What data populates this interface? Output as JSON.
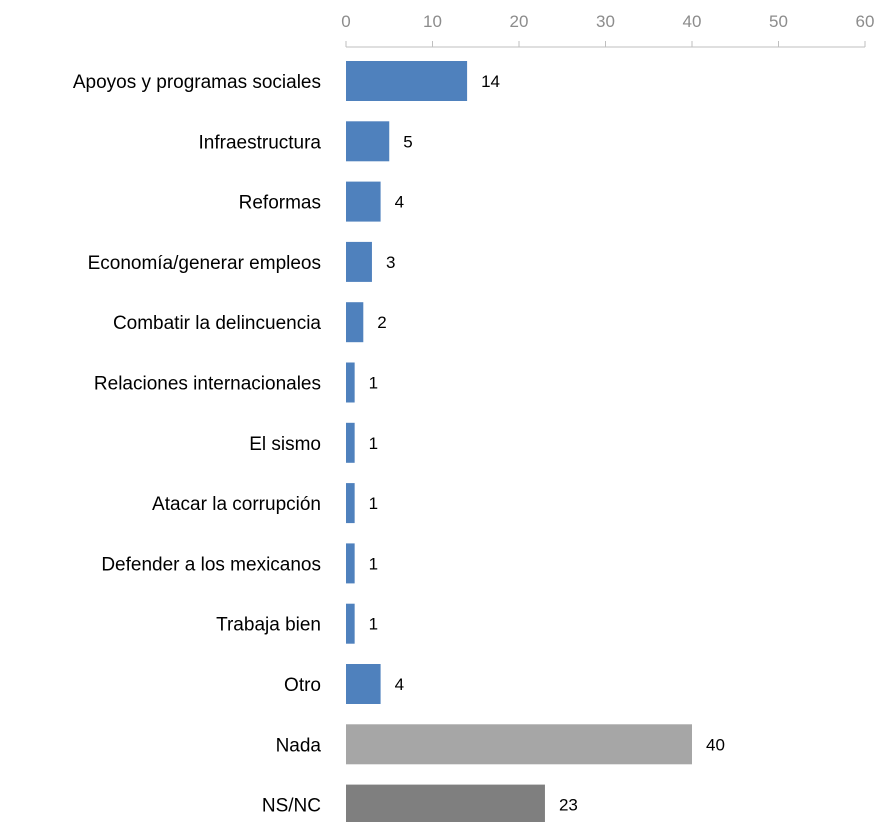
{
  "chart_data": {
    "type": "bar",
    "orientation": "horizontal",
    "categories": [
      "Apoyos y programas sociales",
      "Infraestructura",
      "Reformas",
      "Economía/generar empleos",
      "Combatir la delincuencia",
      "Relaciones internacionales",
      "El sismo",
      "Atacar la corrupción",
      "Defender a los mexicanos",
      "Trabaja bien",
      "Otro",
      "Nada",
      "NS/NC"
    ],
    "values": [
      14,
      5,
      4,
      3,
      2,
      1,
      1,
      1,
      1,
      1,
      4,
      40,
      23
    ],
    "colors": [
      "#4f81bd",
      "#4f81bd",
      "#4f81bd",
      "#4f81bd",
      "#4f81bd",
      "#4f81bd",
      "#4f81bd",
      "#4f81bd",
      "#4f81bd",
      "#4f81bd",
      "#4f81bd",
      "#a6a6a6",
      "#7f7f7f"
    ],
    "title": "",
    "xlabel": "",
    "ylabel": "",
    "xlim": [
      0,
      60
    ],
    "ticks": [
      0,
      10,
      20,
      30,
      40,
      50,
      60
    ],
    "axis_position": "top",
    "grid": false,
    "legend": "none",
    "data_labels": true
  }
}
